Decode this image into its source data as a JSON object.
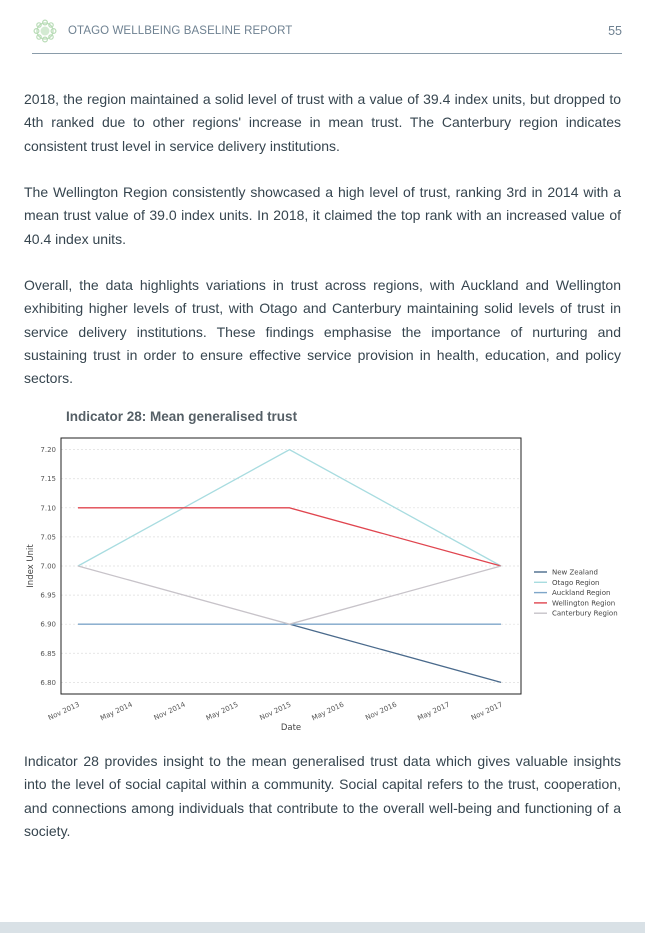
{
  "header": {
    "report_title": "OTAGO WELLBEING BASELINE REPORT",
    "page_number": "55"
  },
  "body": {
    "paragraph_1": "2018, the region maintained a solid level of trust with a value of 39.4 index units, but dropped to 4th ranked due to other regions' increase in mean trust. The Canterbury region indicates consistent trust level in service delivery institutions.",
    "paragraph_2": "The Wellington Region consistently showcased a high level of trust, ranking 3rd in 2014 with a mean trust value of 39.0 index units. In 2018, it claimed the top rank with an increased value of 40.4 index units.",
    "paragraph_3": "Overall, the data highlights variations in trust across regions, with Auckland and Wellington exhibiting higher levels of trust, with Otago and Canterbury maintaining solid levels of trust in service delivery institutions. These findings emphasise the importance of nurturing and sustaining trust in order to ensure effective service provision in health, education, and policy sectors.",
    "paragraph_4": "Indicator 28 provides insight to the mean generalised trust data which gives valuable insights into the level of social capital within a community. Social capital refers to the trust, cooperation, and connections among individuals that contribute to the overall well-being and functioning of a society."
  },
  "colors": {
    "accent": "#7a8c99",
    "logo": "#b9dcb7",
    "footer": "#d9e1e6"
  },
  "chart_data": {
    "type": "line",
    "title": "Indicator 28: Mean generalised trust",
    "xlabel": "Date",
    "ylabel": "Index Unit",
    "categories": [
      "Nov 2013",
      "May 2014",
      "Nov 2014",
      "May 2015",
      "Nov 2015",
      "May 2016",
      "Nov 2016",
      "May 2017",
      "Nov 2017"
    ],
    "yticks": [
      "6.80",
      "6.85",
      "6.90",
      "6.95",
      "7.00",
      "7.05",
      "7.10",
      "7.15",
      "7.20"
    ],
    "ylim": [
      6.78,
      7.22
    ],
    "grid": true,
    "legend_position": "right",
    "series": [
      {
        "name": "New Zealand",
        "color": "#4a6a8c",
        "points": [
          [
            "Nov 2015",
            6.9
          ],
          [
            "Nov 2017",
            6.8
          ]
        ]
      },
      {
        "name": "Otago Region",
        "color": "#a8dce0",
        "points": [
          [
            "Nov 2013",
            7.0
          ],
          [
            "Nov 2015",
            7.2
          ],
          [
            "Nov 2017",
            7.0
          ]
        ]
      },
      {
        "name": "Auckland Region",
        "color": "#7ea6c9",
        "points": [
          [
            "Nov 2013",
            6.9
          ],
          [
            "Nov 2015",
            6.9
          ],
          [
            "Nov 2017",
            6.9
          ]
        ]
      },
      {
        "name": "Wellington Region",
        "color": "#e0454f",
        "points": [
          [
            "Nov 2013",
            7.1
          ],
          [
            "Nov 2015",
            7.1
          ],
          [
            "Nov 2017",
            7.0
          ]
        ]
      },
      {
        "name": "Canterbury Region",
        "color": "#c7c3c9",
        "points": [
          [
            "Nov 2013",
            7.0
          ],
          [
            "Nov 2015",
            6.9
          ],
          [
            "Nov 2017",
            7.0
          ]
        ]
      }
    ]
  }
}
